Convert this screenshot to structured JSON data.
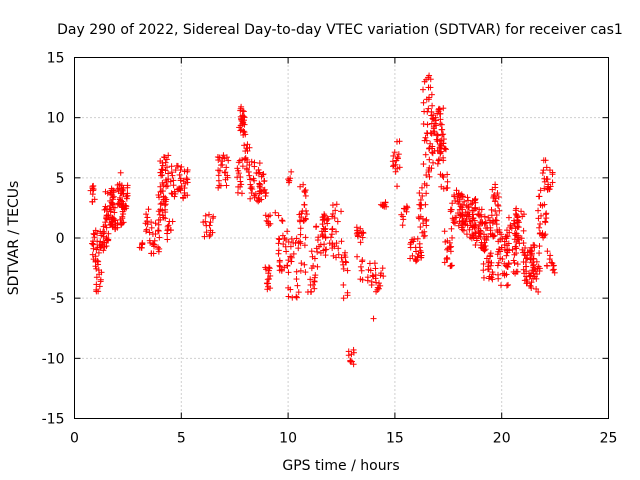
{
  "chart_data": {
    "type": "scatter",
    "title": "Day 290 of 2022, Sidereal Day-to-day VTEC variation (SDTVAR) for receiver cas1",
    "xlabel": "GPS time / hours",
    "ylabel": "SDTVAR / TECUs",
    "xlim": [
      0,
      25
    ],
    "ylim": [
      -15,
      15
    ],
    "xticks": [
      0,
      5,
      10,
      15,
      20,
      25
    ],
    "yticks": [
      -15,
      -10,
      -5,
      0,
      5,
      10,
      15
    ],
    "grid": true,
    "marker": "plus",
    "color": "#ff0000",
    "clusters": [
      {
        "x0": 0.75,
        "x1": 0.95,
        "ymin": 3.0,
        "ymax": 4.5,
        "n": 10
      },
      {
        "x0": 0.8,
        "x1": 1.2,
        "ymin": -2.5,
        "ymax": 0.8,
        "n": 25
      },
      {
        "x0": 1.0,
        "x1": 1.3,
        "ymin": -4.8,
        "ymax": -2.5,
        "n": 12
      },
      {
        "x0": 1.2,
        "x1": 1.6,
        "ymin": -1.5,
        "ymax": 1.0,
        "n": 25
      },
      {
        "x0": 1.4,
        "x1": 1.8,
        "ymin": 1.0,
        "ymax": 4.0,
        "n": 35
      },
      {
        "x0": 1.7,
        "x1": 2.3,
        "ymin": 0.5,
        "ymax": 4.5,
        "n": 50
      },
      {
        "x0": 2.1,
        "x1": 2.5,
        "ymin": 2.0,
        "ymax": 5.6,
        "n": 25
      },
      {
        "x0": 3.0,
        "x1": 3.2,
        "ymin": -1.2,
        "ymax": -0.2,
        "n": 6
      },
      {
        "x0": 3.3,
        "x1": 3.5,
        "ymin": 0.5,
        "ymax": 2.5,
        "n": 8
      },
      {
        "x0": 3.5,
        "x1": 4.0,
        "ymin": -1.5,
        "ymax": 1.5,
        "n": 25
      },
      {
        "x0": 3.9,
        "x1": 4.3,
        "ymin": 1.5,
        "ymax": 4.0,
        "n": 25
      },
      {
        "x0": 4.0,
        "x1": 4.4,
        "ymin": 4.0,
        "ymax": 7.0,
        "n": 25
      },
      {
        "x0": 4.3,
        "x1": 4.6,
        "ymin": -0.5,
        "ymax": 1.5,
        "n": 10
      },
      {
        "x0": 4.5,
        "x1": 5.3,
        "ymin": 3.3,
        "ymax": 6.0,
        "n": 40
      },
      {
        "x0": 6.0,
        "x1": 6.5,
        "ymin": 0.0,
        "ymax": 2.0,
        "n": 15
      },
      {
        "x0": 6.7,
        "x1": 7.2,
        "ymin": 4.0,
        "ymax": 7.0,
        "n": 25
      },
      {
        "x0": 7.6,
        "x1": 7.9,
        "ymin": 3.5,
        "ymax": 6.5,
        "n": 15
      },
      {
        "x0": 7.7,
        "x1": 8.0,
        "ymin": 8.5,
        "ymax": 10.8,
        "n": 25
      },
      {
        "x0": 7.9,
        "x1": 8.2,
        "ymin": 5.0,
        "ymax": 8.0,
        "n": 15
      },
      {
        "x0": 8.2,
        "x1": 8.7,
        "ymin": 3.0,
        "ymax": 6.5,
        "n": 25
      },
      {
        "x0": 8.6,
        "x1": 9.0,
        "ymin": 3.0,
        "ymax": 5.5,
        "n": 20
      },
      {
        "x0": 8.9,
        "x1": 9.2,
        "ymin": 1.0,
        "ymax": 2.2,
        "n": 8
      },
      {
        "x0": 8.9,
        "x1": 9.2,
        "ymin": -4.3,
        "ymax": -2.0,
        "n": 15
      },
      {
        "x0": 9.5,
        "x1": 10.0,
        "ymin": -3.0,
        "ymax": 2.0,
        "n": 25
      },
      {
        "x0": 10.0,
        "x1": 10.2,
        "ymin": 4.5,
        "ymax": 6.0,
        "n": 6
      },
      {
        "x0": 10.0,
        "x1": 10.5,
        "ymin": -5.0,
        "ymax": 0.0,
        "n": 25
      },
      {
        "x0": 10.5,
        "x1": 10.9,
        "ymin": -3.0,
        "ymax": 4.5,
        "n": 30
      },
      {
        "x0": 10.9,
        "x1": 11.4,
        "ymin": -4.5,
        "ymax": -1.0,
        "n": 18
      },
      {
        "x0": 11.3,
        "x1": 11.8,
        "ymin": -1.5,
        "ymax": 2.0,
        "n": 20
      },
      {
        "x0": 11.6,
        "x1": 12.1,
        "ymin": -0.5,
        "ymax": 2.0,
        "n": 20
      },
      {
        "x0": 12.0,
        "x1": 12.5,
        "ymin": -2.0,
        "ymax": 3.0,
        "n": 20
      },
      {
        "x0": 12.5,
        "x1": 12.9,
        "ymin": -4.8,
        "ymax": -1.0,
        "n": 12
      },
      {
        "x0": 12.8,
        "x1": 13.1,
        "ymin": -10.5,
        "ymax": -9.3,
        "n": 10
      },
      {
        "x0": 13.2,
        "x1": 13.6,
        "ymin": -3.5,
        "ymax": 1.0,
        "n": 20
      },
      {
        "x0": 13.7,
        "x1": 14.1,
        "ymin": -4.0,
        "ymax": -2.0,
        "n": 12
      },
      {
        "x0": 14.1,
        "x1": 14.5,
        "ymin": -4.5,
        "ymax": -2.5,
        "n": 12
      },
      {
        "x0": 14.3,
        "x1": 14.7,
        "ymin": 2.5,
        "ymax": 3.0,
        "n": 10
      },
      {
        "x0": 14.9,
        "x1": 15.3,
        "ymin": 5.5,
        "ymax": 8.5,
        "n": 15
      },
      {
        "x0": 15.3,
        "x1": 15.6,
        "ymin": 1.0,
        "ymax": 3.0,
        "n": 10
      },
      {
        "x0": 15.7,
        "x1": 16.3,
        "ymin": -2.0,
        "ymax": 0.0,
        "n": 25
      },
      {
        "x0": 16.1,
        "x1": 16.5,
        "ymin": 0.0,
        "ymax": 5.0,
        "n": 25
      },
      {
        "x0": 16.3,
        "x1": 16.8,
        "ymin": 5.0,
        "ymax": 13.5,
        "n": 40
      },
      {
        "x0": 16.7,
        "x1": 17.3,
        "ymin": 6.0,
        "ymax": 11.0,
        "n": 50
      },
      {
        "x0": 17.1,
        "x1": 17.5,
        "ymin": 4.0,
        "ymax": 8.0,
        "n": 20
      },
      {
        "x0": 17.3,
        "x1": 17.7,
        "ymin": -2.5,
        "ymax": 1.0,
        "n": 20
      },
      {
        "x0": 17.6,
        "x1": 18.2,
        "ymin": 1.0,
        "ymax": 4.0,
        "n": 40
      },
      {
        "x0": 18.1,
        "x1": 18.8,
        "ymin": 0.0,
        "ymax": 3.5,
        "n": 50
      },
      {
        "x0": 18.6,
        "x1": 19.2,
        "ymin": -1.0,
        "ymax": 2.5,
        "n": 50
      },
      {
        "x0": 19.1,
        "x1": 19.6,
        "ymin": -3.5,
        "ymax": 2.0,
        "n": 45
      },
      {
        "x0": 19.5,
        "x1": 19.9,
        "ymin": 0.0,
        "ymax": 4.5,
        "n": 30
      },
      {
        "x0": 19.8,
        "x1": 20.3,
        "ymin": -4.0,
        "ymax": 1.0,
        "n": 40
      },
      {
        "x0": 20.2,
        "x1": 20.8,
        "ymin": -3.0,
        "ymax": 2.0,
        "n": 35
      },
      {
        "x0": 20.6,
        "x1": 21.1,
        "ymin": -1.0,
        "ymax": 2.5,
        "n": 30
      },
      {
        "x0": 21.0,
        "x1": 21.5,
        "ymin": -4.0,
        "ymax": -1.0,
        "n": 35
      },
      {
        "x0": 21.3,
        "x1": 21.8,
        "ymin": -4.5,
        "ymax": -0.5,
        "n": 30
      },
      {
        "x0": 21.7,
        "x1": 22.1,
        "ymin": 0.0,
        "ymax": 5.0,
        "n": 25
      },
      {
        "x0": 21.9,
        "x1": 22.4,
        "ymin": 4.0,
        "ymax": 6.5,
        "n": 20
      },
      {
        "x0": 22.1,
        "x1": 22.5,
        "ymin": -3.0,
        "ymax": -1.0,
        "n": 12
      }
    ],
    "outliers": [
      {
        "x": 14.0,
        "y": -6.7
      },
      {
        "x": 12.6,
        "y": -5.0
      },
      {
        "x": 7.8,
        "y": 10.9
      },
      {
        "x": 16.6,
        "y": 13.5
      },
      {
        "x": 9.4,
        "y": 2.1
      },
      {
        "x": 15.1,
        "y": 4.3
      }
    ]
  }
}
